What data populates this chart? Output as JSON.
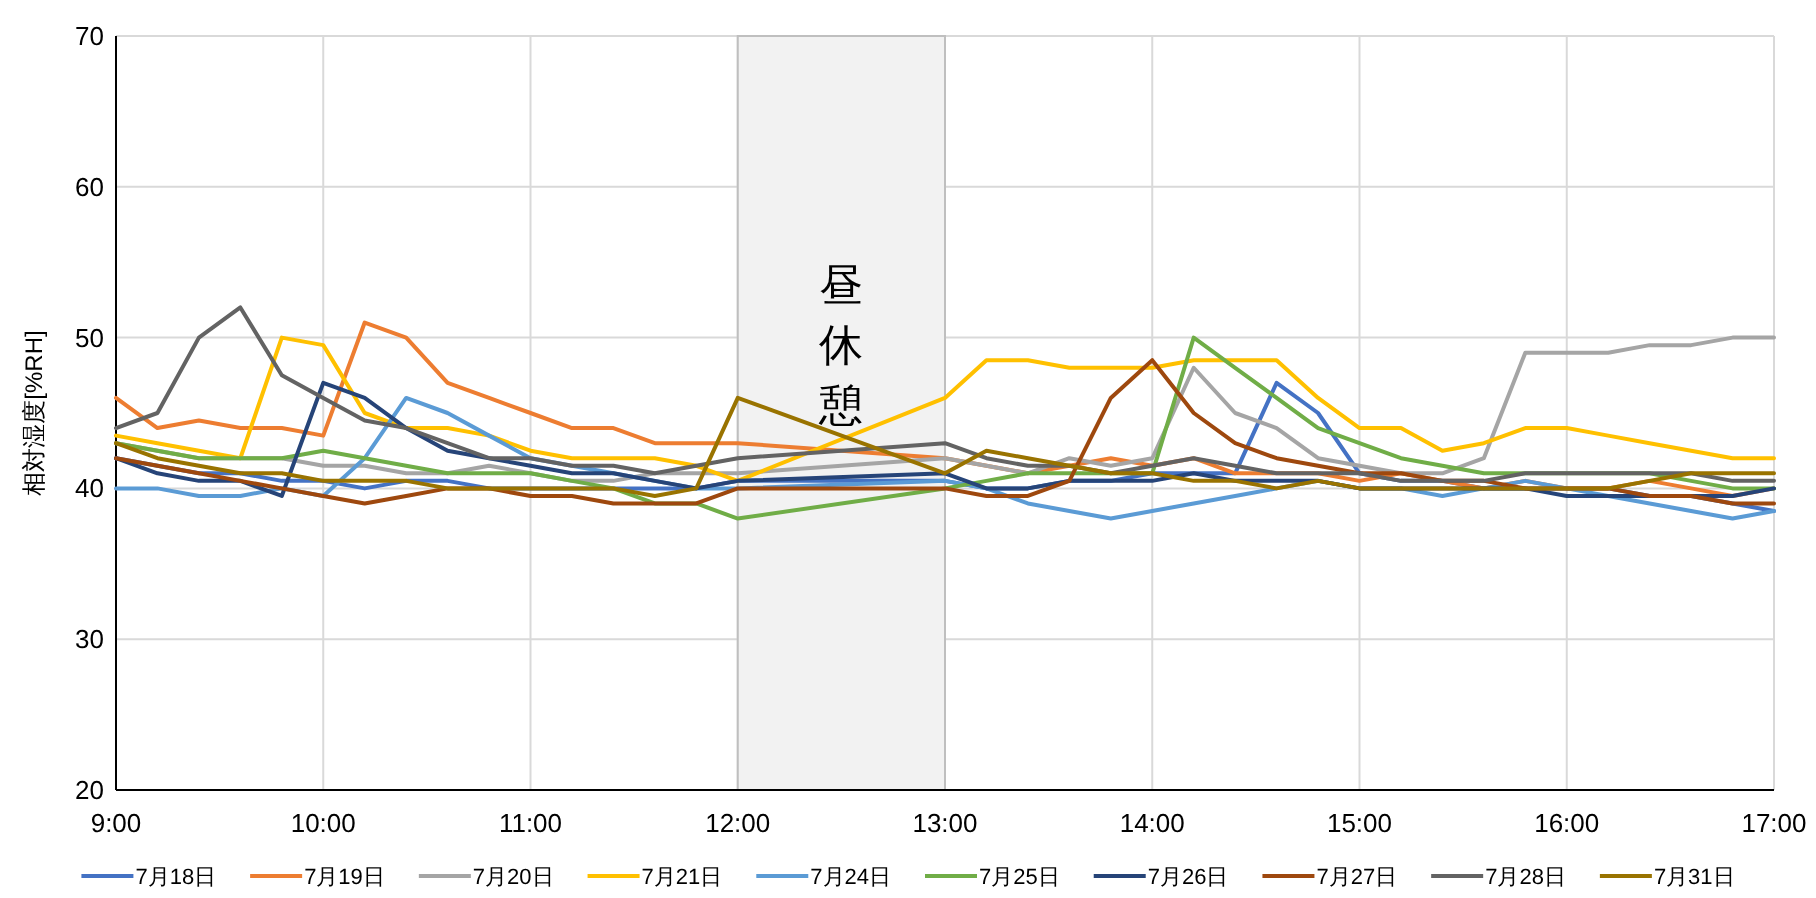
{
  "chart_data": {
    "type": "line",
    "ylabel": "相対湿度[%RH]",
    "x": [
      9,
      9.2,
      9.4,
      9.6,
      9.8,
      10,
      10.2,
      10.4,
      10.6,
      10.8,
      11,
      11.2,
      11.4,
      11.6,
      11.8,
      12,
      13,
      13.2,
      13.4,
      13.6,
      13.8,
      14,
      14.2,
      14.4,
      14.6,
      14.8,
      15,
      15.2,
      15.4,
      15.6,
      15.8,
      16,
      16.2,
      16.4,
      16.6,
      16.8,
      17
    ],
    "xlim": [
      9,
      17
    ],
    "xticks": [
      {
        "value": 9,
        "label": "9:00"
      },
      {
        "value": 10,
        "label": "10:00"
      },
      {
        "value": 11,
        "label": "11:00"
      },
      {
        "value": 12,
        "label": "12:00"
      },
      {
        "value": 13,
        "label": "13:00"
      },
      {
        "value": 14,
        "label": "14:00"
      },
      {
        "value": 15,
        "label": "15:00"
      },
      {
        "value": 16,
        "label": "16:00"
      },
      {
        "value": 17,
        "label": "17:00"
      }
    ],
    "ylim": [
      20,
      70
    ],
    "yticks": [
      20,
      30,
      40,
      50,
      60,
      70
    ],
    "grid": true,
    "legend": "bottom",
    "marker": "none",
    "line_style": "solid",
    "bands": [
      {
        "axis": "x",
        "from": 12,
        "to": 13,
        "label": "昼休憩",
        "color": "#f2f2f2"
      }
    ],
    "series": [
      {
        "name": "7月18日",
        "color": "#4472c4",
        "values": [
          42,
          41.5,
          41,
          41,
          40.5,
          40.5,
          40,
          40.5,
          40.5,
          40,
          40,
          40,
          40,
          40,
          40,
          40.5,
          40.5,
          40,
          40,
          40.5,
          40.5,
          41,
          41,
          41,
          47,
          45,
          41,
          40.5,
          40.5,
          40,
          40,
          40,
          40,
          39.5,
          39.5,
          39,
          38.5
        ]
      },
      {
        "name": "7月19日",
        "color": "#ed7d31",
        "values": [
          46,
          44,
          44.5,
          44,
          44,
          43.5,
          51,
          50,
          47,
          46,
          45,
          44,
          44,
          43,
          43,
          43,
          42,
          41.5,
          41,
          41.5,
          42,
          41.5,
          42,
          41,
          41,
          41,
          40.5,
          41,
          40.5,
          40,
          40.5,
          40,
          40,
          40.5,
          40,
          39.5,
          40
        ]
      },
      {
        "name": "7月20日",
        "color": "#a5a5a5",
        "values": [
          43,
          42.5,
          42,
          42,
          42,
          41.5,
          41.5,
          41,
          41,
          41.5,
          41,
          40.5,
          40.5,
          41,
          41,
          41,
          42,
          41.5,
          41,
          42,
          41.5,
          42,
          48,
          45,
          44,
          42,
          41.5,
          41,
          41,
          42,
          49,
          49,
          49,
          49.5,
          49.5,
          50,
          50
        ]
      },
      {
        "name": "7月21日",
        "color": "#ffc000",
        "values": [
          43.5,
          43,
          42.5,
          42,
          50,
          49.5,
          45,
          44,
          44,
          43.5,
          42.5,
          42,
          42,
          42,
          41.5,
          40.5,
          46,
          48.5,
          48.5,
          48,
          48,
          48,
          48.5,
          48.5,
          48.5,
          46,
          44,
          44,
          42.5,
          43,
          44,
          44,
          43.5,
          43,
          42.5,
          42,
          42
        ]
      },
      {
        "name": "7月24日",
        "color": "#5b9bd5",
        "values": [
          40,
          40,
          39.5,
          39.5,
          40,
          39.5,
          42,
          46,
          45,
          43.5,
          42,
          41.5,
          41,
          40.5,
          40,
          40,
          40.5,
          40,
          39,
          38.5,
          38,
          38.5,
          39,
          39.5,
          40,
          40.5,
          40,
          40,
          39.5,
          40,
          40.5,
          40,
          39.5,
          39,
          38.5,
          38,
          38.5
        ]
      },
      {
        "name": "7月25日",
        "color": "#70ad47",
        "values": [
          43,
          42.5,
          42,
          42,
          42,
          42.5,
          42,
          41.5,
          41,
          41,
          41,
          40.5,
          40,
          39,
          39,
          38,
          40,
          40.5,
          41,
          41,
          41,
          41,
          50,
          48,
          46,
          44,
          43,
          42,
          41.5,
          41,
          41,
          41,
          41,
          41,
          40.5,
          40,
          40
        ]
      },
      {
        "name": "7月26日",
        "color": "#264478",
        "values": [
          42,
          41,
          40.5,
          40.5,
          39.5,
          47,
          46,
          44,
          42.5,
          42,
          41.5,
          41,
          41,
          40.5,
          40,
          40.5,
          41,
          40,
          40,
          40.5,
          40.5,
          40.5,
          41,
          40.5,
          40.5,
          40.5,
          40,
          40,
          40,
          40,
          40,
          39.5,
          39.5,
          39.5,
          39.5,
          39.5,
          40
        ]
      },
      {
        "name": "7月27日",
        "color": "#9e480e",
        "values": [
          42,
          41.5,
          41,
          40.5,
          40,
          39.5,
          39,
          39.5,
          40,
          40,
          39.5,
          39.5,
          39,
          39,
          39,
          40,
          40,
          39.5,
          39.5,
          40.5,
          46,
          48.5,
          45,
          43,
          42,
          41.5,
          41,
          41,
          40.5,
          40.5,
          40,
          40,
          40,
          39.5,
          39.5,
          39,
          39
        ]
      },
      {
        "name": "7月28日",
        "color": "#636363",
        "values": [
          44,
          45,
          50,
          52,
          47.5,
          46,
          44.5,
          44,
          43,
          42,
          42,
          41.5,
          41.5,
          41,
          41.5,
          42,
          43,
          42,
          41.5,
          41.5,
          41,
          41.5,
          42,
          41.5,
          41,
          41,
          41,
          40.5,
          40.5,
          40.5,
          41,
          41,
          41,
          41,
          41,
          40.5,
          40.5
        ]
      },
      {
        "name": "7月31日",
        "color": "#997300",
        "values": [
          43,
          42,
          41.5,
          41,
          41,
          40.5,
          40.5,
          40.5,
          40,
          40,
          40,
          40,
          40,
          39.5,
          40,
          46,
          41,
          42.5,
          42,
          41.5,
          41,
          41,
          40.5,
          40.5,
          40,
          40.5,
          40,
          40,
          40,
          40,
          40,
          40,
          40,
          40.5,
          41,
          41,
          41
        ]
      }
    ]
  }
}
